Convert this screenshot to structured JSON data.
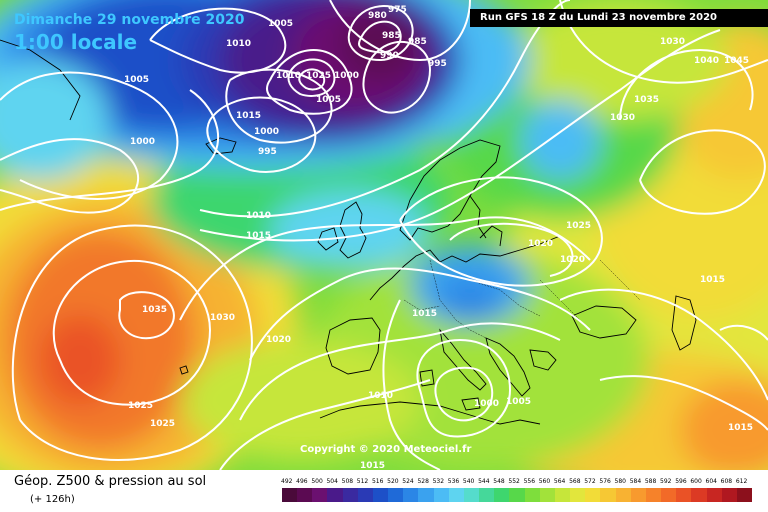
{
  "header": {
    "date": "Dimanche 29 novembre 2020",
    "time": "1:00 locale",
    "run": "Run GFS 18 Z du Lundi 23 novembre 2020"
  },
  "copyright": "Copyright © 2020 Meteociel.fr",
  "footer": {
    "title": "Géop. Z500 & pression au sol",
    "subtitle": "(+ 126h)"
  },
  "scale": {
    "values": [
      "492",
      "496",
      "500",
      "504",
      "508",
      "512",
      "516",
      "520",
      "524",
      "528",
      "532",
      "536",
      "540",
      "544",
      "548",
      "552",
      "556",
      "560",
      "564",
      "568",
      "572",
      "576",
      "580",
      "584",
      "588",
      "592",
      "596",
      "600",
      "604",
      "608",
      "612"
    ],
    "colors": [
      "#4a0a3a",
      "#5b0a52",
      "#6b1070",
      "#4a1a8a",
      "#3a2aa0",
      "#2a3ab5",
      "#1d50c8",
      "#1f6ad8",
      "#2b86e6",
      "#3aa2ef",
      "#4cbcf5",
      "#5ed4f0",
      "#55dccc",
      "#45d89a",
      "#3ed66e",
      "#57d84a",
      "#7ede3c",
      "#a2e23a",
      "#c6e63a",
      "#e2e63c",
      "#f2dc38",
      "#f6c834",
      "#f8b232",
      "#f89a2e",
      "#f6822a",
      "#f26a28",
      "#ea5226",
      "#dc3a24",
      "#c82622",
      "#b01820",
      "#8c101c"
    ]
  },
  "isobars": [
    "1005",
    "980",
    "975",
    "1010",
    "985",
    "985",
    "1030",
    "1005",
    "990",
    "995",
    "1040",
    "1045",
    "1010",
    "1025",
    "1000",
    "1035",
    "1005",
    "1030",
    "1015",
    "1000",
    "1000",
    "995",
    "1010",
    "1015",
    "1025",
    "1020",
    "1020",
    "1035",
    "1030",
    "1020",
    "1015",
    "1010",
    "1000",
    "1005",
    "1025",
    "1025",
    "1015",
    "1015",
    "1015"
  ]
}
